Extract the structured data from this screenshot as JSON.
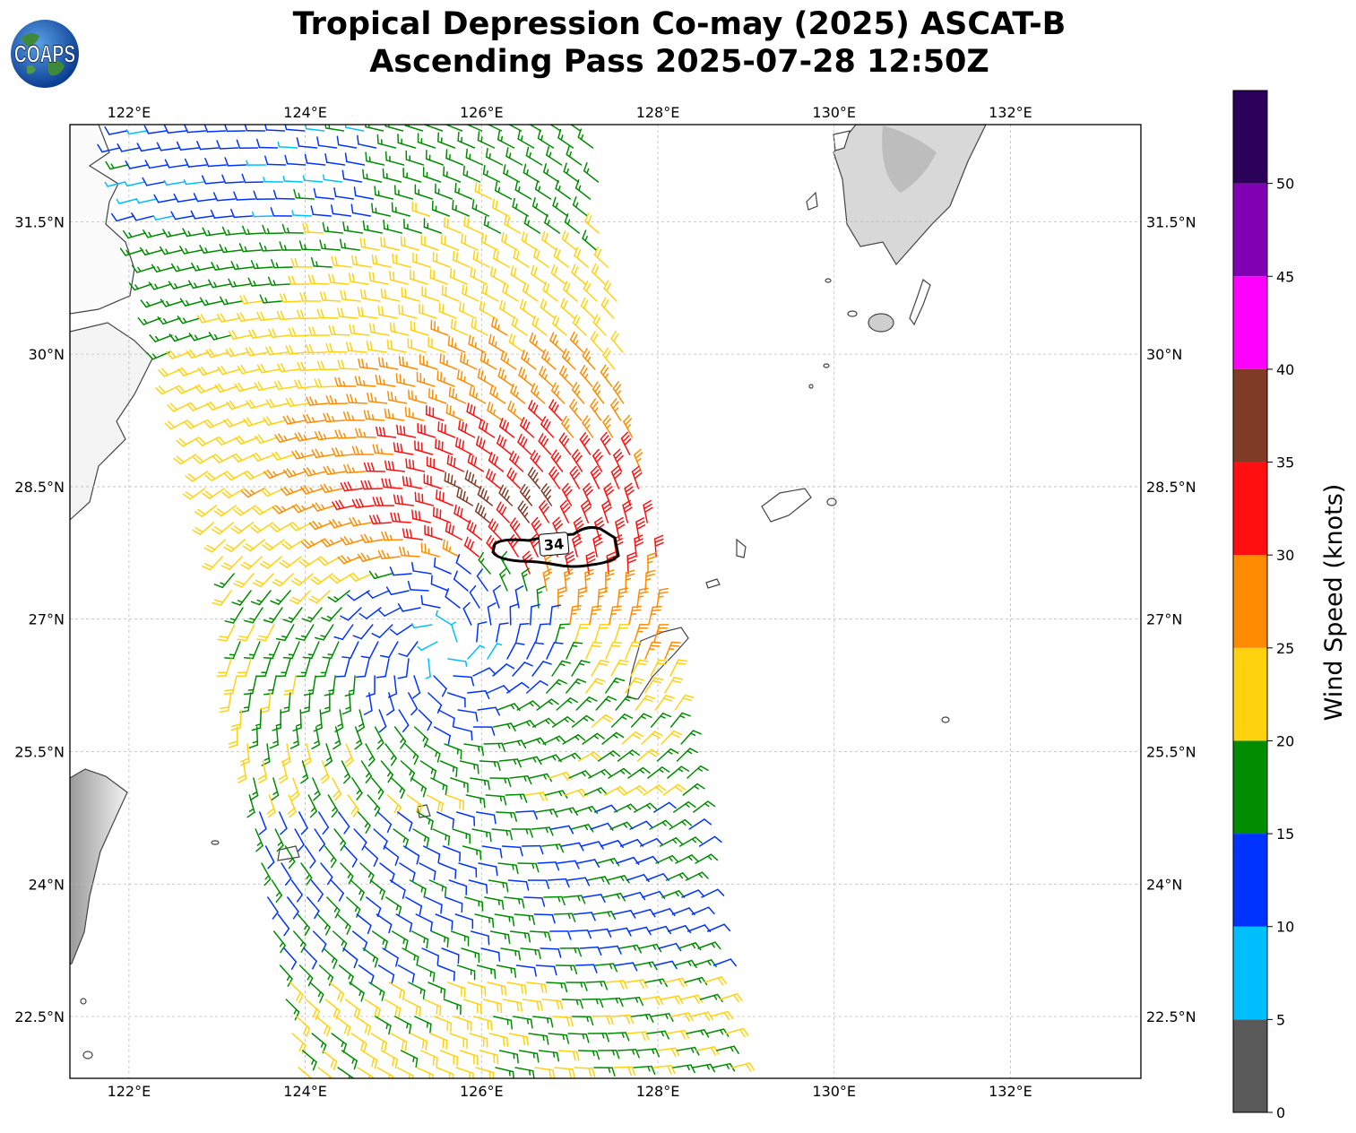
{
  "title": {
    "line1": "Tropical Depression Co-may (2025) ASCAT-B",
    "line2": "Ascending Pass 2025-07-28 12:50Z"
  },
  "logo": {
    "text": "COAPS"
  },
  "map": {
    "lon_range": [
      121.33,
      133.48
    ],
    "lat_range": [
      21.8,
      32.6
    ],
    "lon_ticks": [
      "122°E",
      "124°E",
      "126°E",
      "128°E",
      "130°E",
      "132°E"
    ],
    "lat_ticks": [
      "31.5°N",
      "30°N",
      "28.5°N",
      "27°N",
      "25.5°N",
      "24°N",
      "22.5°N"
    ],
    "gridlines": "dashed",
    "storm_center": {
      "lon": 125.6,
      "lat": 26.65
    },
    "contour_label": "34"
  },
  "colorbar": {
    "label": "Wind Speed (knots)",
    "ticks": [
      "0",
      "5",
      "10",
      "15",
      "20",
      "25",
      "30",
      "35",
      "40",
      "45",
      "50"
    ],
    "bins": [
      {
        "range": [
          0,
          5
        ],
        "color": "#595959"
      },
      {
        "range": [
          5,
          10
        ],
        "color": "#00bfff"
      },
      {
        "range": [
          10,
          15
        ],
        "color": "#0033ff"
      },
      {
        "range": [
          15,
          20
        ],
        "color": "#008c00"
      },
      {
        "range": [
          20,
          25
        ],
        "color": "#ffd20f"
      },
      {
        "range": [
          25,
          30
        ],
        "color": "#ff8c00"
      },
      {
        "range": [
          30,
          35
        ],
        "color": "#ff0f0f"
      },
      {
        "range": [
          35,
          40
        ],
        "color": "#803b26"
      },
      {
        "range": [
          40,
          45
        ],
        "color": "#ff00ff"
      },
      {
        "range": [
          45,
          50
        ],
        "color": "#8000b3"
      },
      {
        "range": [
          50,
          55
        ],
        "color": "#2b0059"
      }
    ]
  }
}
